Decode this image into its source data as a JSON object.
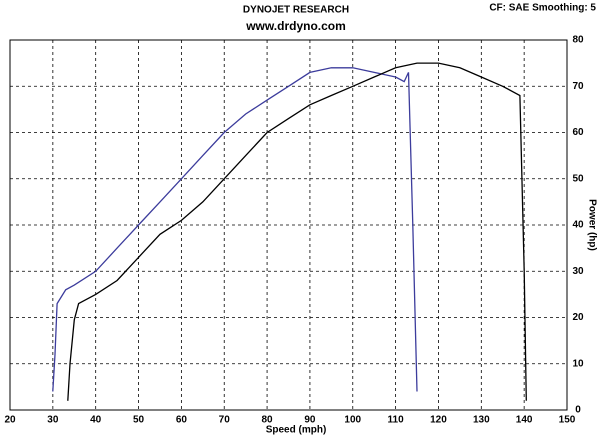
{
  "chart_data": {
    "type": "line",
    "title": "DYNOJET RESEARCH",
    "subtitle": "www.drdyno.com",
    "annotation": "CF: SAE  Smoothing: 5",
    "x_label": "Speed (mph)",
    "y_label": "Power (hp)",
    "xlim": [
      20,
      150
    ],
    "xticks": [
      20,
      30,
      40,
      50,
      60,
      70,
      80,
      90,
      100,
      110,
      120,
      130,
      140,
      150
    ],
    "ylim": [
      0,
      80
    ],
    "yticks": [
      0,
      10,
      20,
      30,
      40,
      50,
      60,
      70,
      80
    ],
    "grid": true,
    "series": [
      {
        "color": "#3c3c9c",
        "x": [
          30,
          30.5,
          31,
          33,
          35,
          40,
          45,
          50,
          55,
          60,
          65,
          70,
          75,
          80,
          85,
          90,
          95,
          100,
          105,
          110,
          112,
          113,
          114,
          115
        ],
        "values": [
          4,
          12,
          23,
          26,
          27,
          30,
          35,
          40,
          45,
          50,
          55,
          60,
          64,
          67,
          70,
          73,
          74,
          74,
          73,
          72,
          71,
          73,
          40,
          4
        ]
      },
      {
        "color": "#000000",
        "x": [
          33.5,
          34,
          35,
          36,
          40,
          45,
          50,
          55,
          60,
          65,
          70,
          75,
          80,
          85,
          90,
          95,
          100,
          105,
          110,
          115,
          120,
          125,
          130,
          135,
          139,
          140,
          140.5
        ],
        "values": [
          2,
          10,
          19.5,
          23,
          25,
          28,
          33,
          38,
          41,
          45,
          50,
          55,
          60,
          63,
          66,
          68,
          70,
          72,
          74,
          75,
          75,
          74,
          72,
          70,
          68,
          30,
          2
        ]
      }
    ]
  }
}
